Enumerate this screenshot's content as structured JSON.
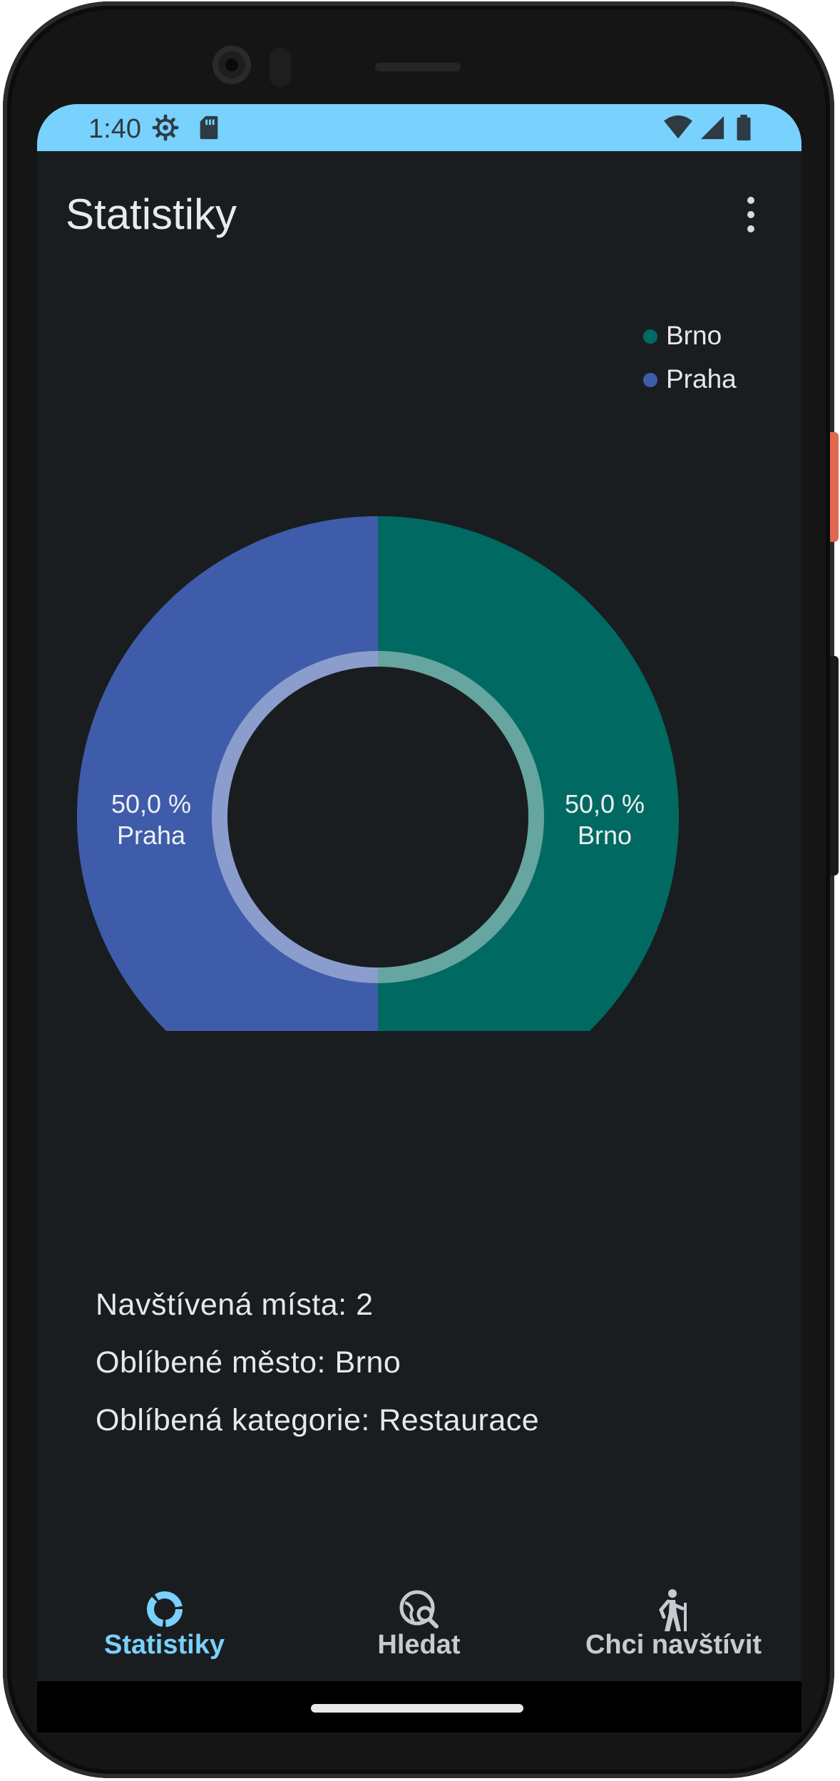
{
  "status_bar": {
    "time": "1:40",
    "icons_left": [
      "settings-icon",
      "sd-card-icon"
    ],
    "icons_right": [
      "wifi-icon",
      "cell-signal-icon",
      "battery-icon"
    ],
    "background": "#79d1fe"
  },
  "app_bar": {
    "title": "Statistiky",
    "menu_icon": "more-vert-icon"
  },
  "chart_data": {
    "type": "pie",
    "donut": true,
    "legend_position": "top-right",
    "slices": [
      {
        "label": "Brno",
        "value": 50.0,
        "value_label": "50,0 %",
        "color": "#006a62"
      },
      {
        "label": "Praha",
        "value": 50.0,
        "value_label": "50,0 %",
        "color": "#3f5cab"
      }
    ],
    "legend": [
      "Brno",
      "Praha"
    ]
  },
  "stats": {
    "visited": "Navštívená místa: 2",
    "favorite_city": "Oblíbené město: Brno",
    "favorite_category": "Oblíbená kategorie: Restaurace"
  },
  "bottom_nav": {
    "items": [
      {
        "label": "Statistiky",
        "icon": "donut-chart-icon",
        "selected": true
      },
      {
        "label": "Hledat",
        "icon": "travel-explore-icon",
        "selected": false
      },
      {
        "label": "Chci navštívit",
        "icon": "hiking-icon",
        "selected": false
      }
    ],
    "selected_color": "#79d1fe",
    "unselected_color": "#c5cbd0"
  },
  "colors": {
    "background": "#1a1d1f",
    "text": "#e6e8ea"
  }
}
